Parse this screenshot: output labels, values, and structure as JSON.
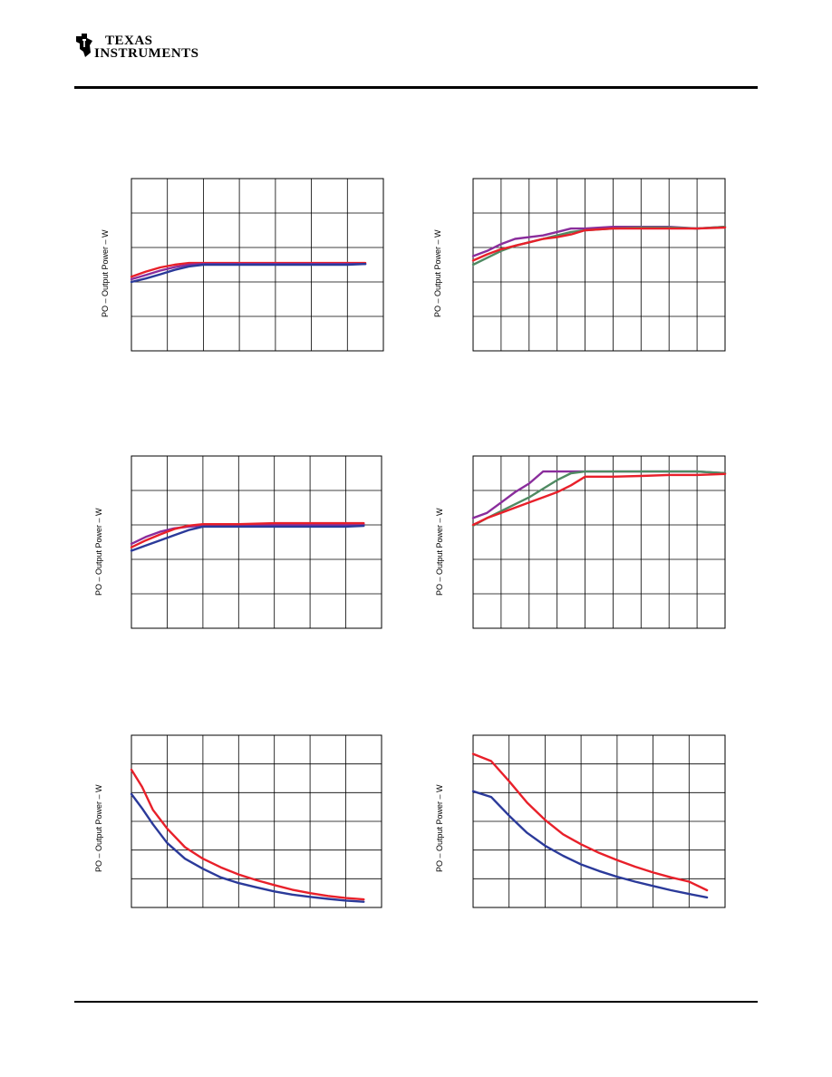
{
  "header": {
    "logo_line1": "TEXAS",
    "logo_line2": "INSTRUMENTS"
  },
  "colors": {
    "red": "#e8202a",
    "blue": "#2b3a9a",
    "purple": "#8a2d9c",
    "green": "#4f8a62",
    "grid": "#000000"
  },
  "chart_data": [
    {
      "type": "line",
      "ylabel": "PO – Output Power – W",
      "xlim": [
        0,
        7
      ],
      "ylim": [
        0,
        5
      ],
      "grid": {
        "cols": 7,
        "rows": 5
      },
      "series": [
        {
          "color": "red",
          "x": [
            0,
            0.4,
            0.8,
            1.2,
            1.6,
            2,
            3,
            4,
            5,
            6,
            6.5
          ],
          "y": [
            2.15,
            2.3,
            2.42,
            2.5,
            2.55,
            2.55,
            2.55,
            2.55,
            2.55,
            2.55,
            2.55
          ]
        },
        {
          "color": "purple",
          "x": [
            0,
            0.4,
            0.8,
            1.2,
            1.6,
            2,
            3,
            4,
            5,
            6,
            6.5
          ],
          "y": [
            2.08,
            2.2,
            2.33,
            2.43,
            2.5,
            2.52,
            2.52,
            2.52,
            2.52,
            2.52,
            2.52
          ]
        },
        {
          "color": "blue",
          "x": [
            0,
            0.4,
            0.8,
            1.2,
            1.6,
            2,
            3,
            4,
            5,
            6,
            6.5
          ],
          "y": [
            2.0,
            2.1,
            2.22,
            2.35,
            2.45,
            2.5,
            2.5,
            2.5,
            2.5,
            2.5,
            2.52
          ]
        }
      ]
    },
    {
      "type": "line",
      "ylabel": "PO – Output Power – W",
      "xlim": [
        0,
        9
      ],
      "ylim": [
        0,
        5
      ],
      "grid": {
        "cols": 9,
        "rows": 5
      },
      "series": [
        {
          "color": "purple",
          "x": [
            0,
            0.5,
            1,
            1.5,
            2,
            2.5,
            3,
            3.5,
            4,
            5,
            6,
            7,
            8,
            9
          ],
          "y": [
            2.75,
            2.9,
            3.1,
            3.25,
            3.3,
            3.35,
            3.45,
            3.55,
            3.55,
            3.6,
            3.6,
            3.6,
            3.55,
            3.6
          ]
        },
        {
          "color": "green",
          "x": [
            0,
            0.5,
            1,
            1.5,
            2,
            2.5,
            3,
            3.5,
            4,
            5,
            6,
            7,
            8,
            9
          ],
          "y": [
            2.5,
            2.7,
            2.9,
            3.05,
            3.15,
            3.25,
            3.35,
            3.45,
            3.5,
            3.55,
            3.58,
            3.58,
            3.55,
            3.6
          ]
        },
        {
          "color": "red",
          "x": [
            0,
            0.5,
            1,
            1.5,
            2,
            2.5,
            3,
            3.5,
            4,
            5,
            6,
            7,
            8,
            9
          ],
          "y": [
            2.62,
            2.8,
            2.95,
            3.05,
            3.15,
            3.25,
            3.3,
            3.38,
            3.5,
            3.55,
            3.55,
            3.55,
            3.55,
            3.58
          ]
        }
      ]
    },
    {
      "type": "line",
      "ylabel": "PO – Output Power – W",
      "xlim": [
        0,
        7
      ],
      "ylim": [
        0,
        5
      ],
      "grid": {
        "cols": 7,
        "rows": 5
      },
      "series": [
        {
          "color": "purple",
          "x": [
            0,
            0.4,
            0.8,
            1.2,
            1.6,
            2,
            3,
            4,
            5,
            6,
            6.5
          ],
          "y": [
            2.45,
            2.65,
            2.8,
            2.9,
            2.95,
            2.98,
            3.0,
            3.0,
            3.0,
            3.0,
            3.02
          ]
        },
        {
          "color": "red",
          "x": [
            0,
            0.4,
            0.8,
            1.2,
            1.6,
            2,
            3,
            4,
            5,
            6,
            6.5
          ],
          "y": [
            2.35,
            2.55,
            2.72,
            2.88,
            2.98,
            3.02,
            3.02,
            3.05,
            3.05,
            3.05,
            3.05
          ]
        },
        {
          "color": "blue",
          "x": [
            0,
            0.4,
            0.8,
            1.2,
            1.6,
            2,
            3,
            4,
            5,
            6,
            6.5
          ],
          "y": [
            2.25,
            2.4,
            2.55,
            2.7,
            2.85,
            2.95,
            2.95,
            2.95,
            2.95,
            2.95,
            2.97
          ]
        }
      ]
    },
    {
      "type": "line",
      "ylabel": "PO – Output Power – W",
      "xlim": [
        0,
        9
      ],
      "ylim": [
        0,
        5
      ],
      "grid": {
        "cols": 9,
        "rows": 5
      },
      "series": [
        {
          "color": "purple",
          "x": [
            0,
            0.5,
            1,
            1.5,
            2,
            2.5,
            3,
            3.5,
            4,
            5,
            6,
            7,
            8,
            9
          ],
          "y": [
            3.2,
            3.35,
            3.65,
            3.95,
            4.2,
            4.55,
            4.55,
            4.55,
            4.55,
            4.55,
            4.55,
            4.55,
            4.55,
            4.5
          ]
        },
        {
          "color": "green",
          "x": [
            0,
            0.5,
            1,
            1.5,
            2,
            2.5,
            3,
            3.5,
            4,
            5,
            6,
            7,
            8,
            9
          ],
          "y": [
            2.98,
            3.2,
            3.4,
            3.6,
            3.8,
            4.05,
            4.3,
            4.5,
            4.55,
            4.55,
            4.55,
            4.55,
            4.55,
            4.5
          ]
        },
        {
          "color": "red",
          "x": [
            0,
            0.5,
            1,
            1.5,
            2,
            2.5,
            3,
            3.5,
            4,
            5,
            6,
            7,
            8,
            9
          ],
          "y": [
            3.0,
            3.2,
            3.35,
            3.5,
            3.65,
            3.8,
            3.95,
            4.15,
            4.4,
            4.4,
            4.42,
            4.45,
            4.45,
            4.48
          ]
        }
      ]
    },
    {
      "type": "line",
      "ylabel": "PO – Output Power – W",
      "xlim": [
        0,
        7
      ],
      "ylim": [
        0,
        6
      ],
      "grid": {
        "cols": 7,
        "rows": 6
      },
      "series": [
        {
          "color": "red",
          "x": [
            0,
            0.3,
            0.6,
            1,
            1.5,
            2,
            2.5,
            3,
            3.5,
            4,
            4.5,
            5,
            5.5,
            6,
            6.5
          ],
          "y": [
            4.8,
            4.2,
            3.4,
            2.75,
            2.1,
            1.7,
            1.4,
            1.15,
            0.95,
            0.78,
            0.62,
            0.5,
            0.4,
            0.33,
            0.28
          ]
        },
        {
          "color": "blue",
          "x": [
            0,
            0.3,
            0.6,
            1,
            1.5,
            2,
            2.5,
            3,
            3.5,
            4,
            4.5,
            5,
            5.5,
            6,
            6.5
          ],
          "y": [
            3.95,
            3.45,
            2.9,
            2.25,
            1.7,
            1.35,
            1.05,
            0.85,
            0.7,
            0.56,
            0.45,
            0.37,
            0.3,
            0.24,
            0.2
          ]
        }
      ]
    },
    {
      "type": "line",
      "ylabel": "PO – Output Power – W",
      "xlim": [
        0,
        7
      ],
      "ylim": [
        0,
        6
      ],
      "grid": {
        "cols": 7,
        "rows": 6
      },
      "series": [
        {
          "color": "red",
          "x": [
            0,
            0.5,
            1,
            1.5,
            2,
            2.5,
            3,
            3.5,
            4,
            4.5,
            5,
            5.5,
            6,
            6.5
          ],
          "y": [
            5.35,
            5.1,
            4.4,
            3.65,
            3.05,
            2.55,
            2.2,
            1.9,
            1.65,
            1.42,
            1.22,
            1.05,
            0.9,
            0.6
          ]
        },
        {
          "color": "blue",
          "x": [
            0,
            0.5,
            1,
            1.5,
            2,
            2.5,
            3,
            3.5,
            4,
            4.5,
            5,
            5.5,
            6,
            6.5
          ],
          "y": [
            4.05,
            3.85,
            3.2,
            2.6,
            2.15,
            1.8,
            1.5,
            1.27,
            1.07,
            0.9,
            0.75,
            0.6,
            0.47,
            0.35
          ]
        }
      ]
    }
  ]
}
